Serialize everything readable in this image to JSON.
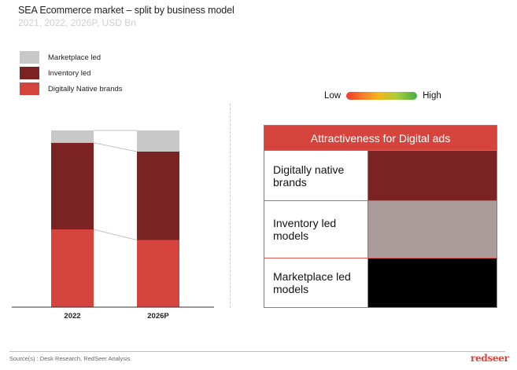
{
  "header": {
    "title": "SEA Ecommerce market – split by business model",
    "subtitle": "2021, 2022, 2026P, USD Bn"
  },
  "colors": {
    "marketplace": "#c8c8c8",
    "inventory": "#7b2323",
    "digital_native": "#d6453d",
    "accent": "#d6453d",
    "connector": "#c0c0c0",
    "axis": "#333333"
  },
  "chart_data": {
    "type": "bar",
    "stacked": true,
    "normalized_percent": true,
    "title": "SEA Ecommerce market – split by business model",
    "subtitle": "2021, 2022, 2026P, USD Bn",
    "categories": [
      "2022",
      "2026P"
    ],
    "series": [
      {
        "name": "Digitally Native brands",
        "key": "digital_native",
        "values": [
          44,
          38
        ]
      },
      {
        "name": "Inventory led",
        "key": "inventory",
        "values": [
          49,
          50
        ]
      },
      {
        "name": "Marketplace led",
        "key": "marketplace",
        "values": [
          7,
          12
        ]
      }
    ],
    "legend": [
      "Marketplace led",
      "Inventory led",
      "Digitally Native brands"
    ],
    "legend_placement": "top-left",
    "xlabel": "",
    "ylabel": "",
    "ylim": [
      0,
      100
    ],
    "grid": false,
    "connector_lines": true
  },
  "scale": {
    "low_label": "Low",
    "high_label": "High"
  },
  "attractiveness": {
    "header": "Attractiveness for Digital ads",
    "rows": [
      {
        "label": "Digitally native brands",
        "color": "#7b2323"
      },
      {
        "label": "Inventory led models",
        "color": "#ab9b9b"
      },
      {
        "label": "Marketplace led models",
        "color": "#000000"
      }
    ]
  },
  "footer": {
    "source": "Source(s) : Desk Research, RedSeer Analysis",
    "logo": "redseer"
  }
}
